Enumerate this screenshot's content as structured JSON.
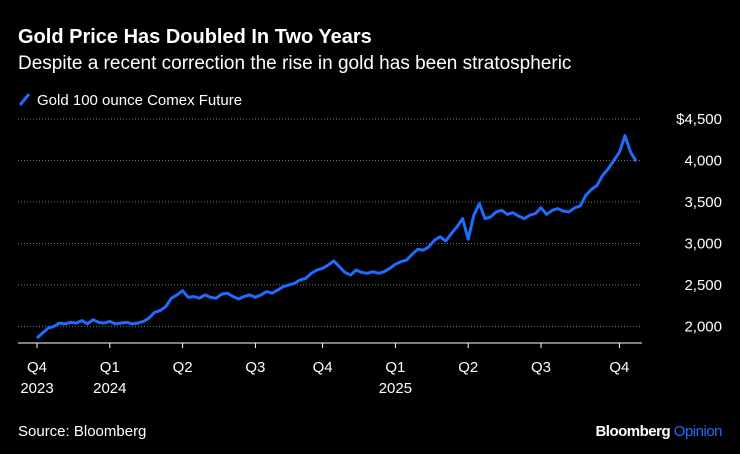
{
  "chart_data": {
    "type": "line",
    "title": "Gold Price Has Doubled In Two Years",
    "subtitle": "Despite a recent correction the rise in gold has been stratospheric",
    "source": "Source: Bloomberg",
    "brand": "Bloomberg",
    "brand_suffix": "Opinion",
    "categories": [
      "Q4\n2023",
      null,
      null,
      null,
      null,
      null,
      null,
      null,
      null,
      null,
      null,
      null,
      null,
      "Q1\n2024",
      null,
      null,
      null,
      null,
      null,
      null,
      null,
      null,
      null,
      null,
      null,
      null,
      "Q2",
      null,
      null,
      null,
      null,
      null,
      null,
      null,
      null,
      null,
      null,
      null,
      null,
      "Q3",
      null,
      null,
      null,
      null,
      null,
      null,
      null,
      null,
      null,
      null,
      null,
      "Q4",
      null,
      null,
      null,
      null,
      null,
      null,
      null,
      null,
      null,
      null,
      null,
      null,
      "Q1\n2025",
      null,
      null,
      null,
      null,
      null,
      null,
      null,
      null,
      null,
      null,
      null,
      null,
      "Q2",
      null,
      null,
      null,
      null,
      null,
      null,
      null,
      null,
      null,
      null,
      null,
      null,
      "Q3",
      null,
      null,
      null,
      null,
      null,
      null,
      null,
      null,
      null,
      null,
      null,
      null,
      null,
      "Q4",
      null,
      null,
      null
    ],
    "series": [
      {
        "name": "Gold 100 ounce Comex Future",
        "color": "#1f6bff",
        "values": [
          1860,
          1920,
          1980,
          2000,
          2040,
          2030,
          2050,
          2040,
          2070,
          2030,
          2080,
          2050,
          2040,
          2060,
          2030,
          2040,
          2050,
          2030,
          2040,
          2060,
          2100,
          2170,
          2190,
          2240,
          2340,
          2380,
          2430,
          2350,
          2360,
          2340,
          2380,
          2350,
          2340,
          2390,
          2400,
          2360,
          2330,
          2360,
          2380,
          2350,
          2380,
          2420,
          2400,
          2440,
          2480,
          2500,
          2520,
          2560,
          2580,
          2640,
          2680,
          2700,
          2740,
          2790,
          2720,
          2650,
          2620,
          2680,
          2650,
          2640,
          2660,
          2640,
          2660,
          2700,
          2750,
          2780,
          2800,
          2870,
          2930,
          2920,
          2960,
          3040,
          3080,
          3030,
          3120,
          3200,
          3300,
          3050,
          3340,
          3480,
          3300,
          3320,
          3380,
          3400,
          3350,
          3370,
          3330,
          3300,
          3340,
          3360,
          3430,
          3350,
          3400,
          3420,
          3390,
          3380,
          3430,
          3450,
          3580,
          3650,
          3700,
          3820,
          3900,
          4000,
          4100,
          4300,
          4100,
          3990
        ]
      }
    ],
    "ylim": [
      1800,
      4500
    ],
    "yticks": [
      {
        "value": 2000,
        "label": "2,000"
      },
      {
        "value": 2500,
        "label": "2,500"
      },
      {
        "value": 3000,
        "label": "3,000"
      },
      {
        "value": 3500,
        "label": "3,500"
      },
      {
        "value": 4000,
        "label": "4,000"
      },
      {
        "value": 4500,
        "label": "$4,500"
      }
    ],
    "grid": true
  }
}
